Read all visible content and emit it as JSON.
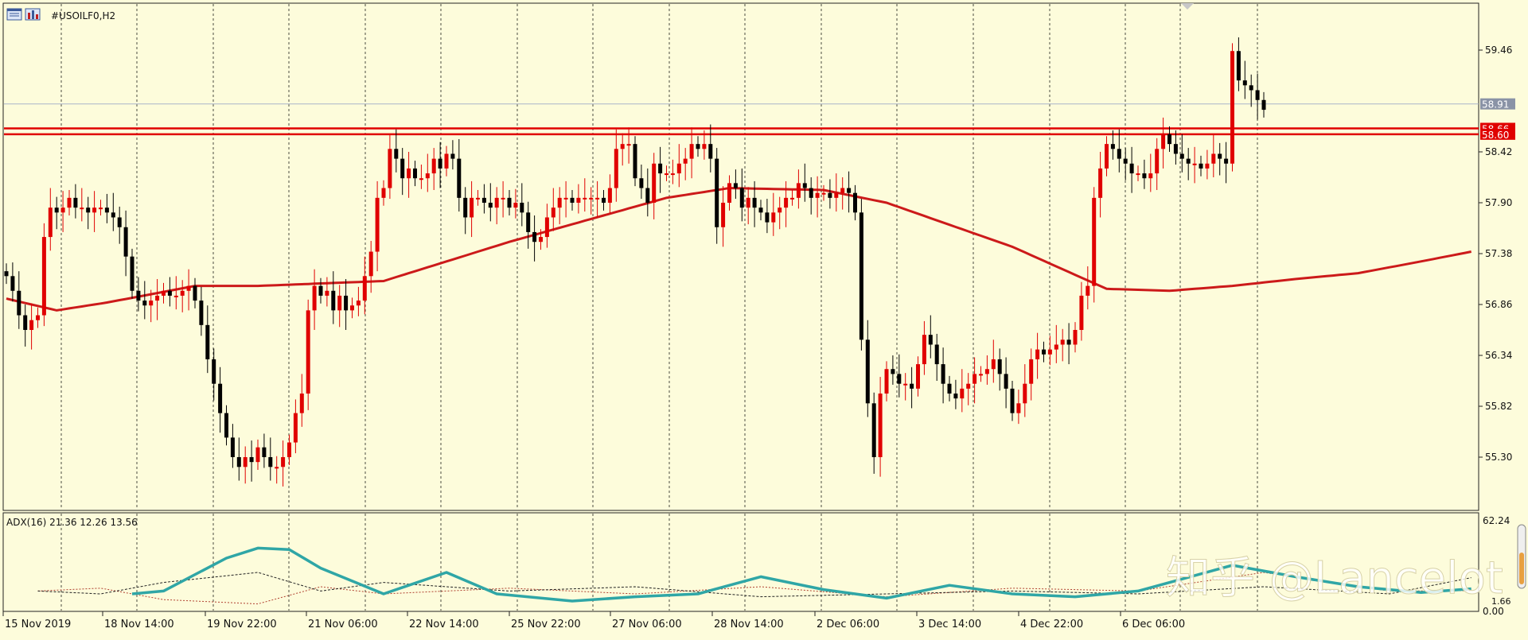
{
  "window": {
    "title": "#USOILF0,H2",
    "icons": [
      "chart-window-icon",
      "chart-bars-icon"
    ]
  },
  "main_panel": {
    "price_lines": [
      {
        "name": "current-price-line",
        "value": 58.91,
        "label": "58.91",
        "color": "#A9B3C9",
        "label_bg": "#8A93A6"
      },
      {
        "name": "resistance-line-upper",
        "value": 58.66,
        "label": "58.66",
        "color": "#E00000",
        "label_bg": "#E00000"
      },
      {
        "name": "resistance-line-lower",
        "value": 58.6,
        "label": "58.60",
        "color": "#E00000",
        "label_bg": "#E00000"
      }
    ]
  },
  "indicator_panel": {
    "label": "ADX(16) 21.36 12.26 13.56",
    "axis_labels": [
      "62.24",
      "1.66",
      "0.00"
    ]
  },
  "watermark": {
    "text": "知乎 @Lancelot"
  },
  "colors": {
    "background": "#FDFCDB",
    "bull_candle": "#E00000",
    "bear_candle": "#000000",
    "moving_average": "#CC1A1A",
    "adx_main": "#2FA6A6",
    "plus_di": "#222222",
    "minus_di": "#B04030",
    "grid": "#000000"
  },
  "chart_data": {
    "type": "candlestick",
    "symbol": "#USOILF0",
    "timeframe": "H2",
    "y_ticks": [
      55.3,
      55.82,
      56.34,
      56.86,
      57.38,
      57.9,
      58.42,
      59.46
    ],
    "ylim": [
      54.87,
      59.96
    ],
    "x_tick_labels": [
      "15 Nov 2019",
      "18 Nov 14:00",
      "19 Nov 22:00",
      "21 Nov 06:00",
      "22 Nov 14:00",
      "25 Nov 22:00",
      "27 Nov 06:00",
      "28 Nov 14:00",
      "2 Dec 06:00",
      "3 Dec 14:00",
      "4 Dec 22:00",
      "6 Dec 06:00"
    ],
    "candles_close": [
      57.15,
      57.0,
      56.75,
      56.6,
      56.7,
      56.75,
      57.55,
      57.85,
      57.8,
      57.85,
      57.95,
      57.85,
      57.85,
      57.8,
      57.85,
      57.85,
      57.8,
      57.75,
      57.65,
      57.35,
      57.0,
      56.9,
      56.85,
      56.9,
      56.95,
      57.0,
      56.95,
      56.95,
      57.0,
      57.05,
      56.9,
      56.65,
      56.3,
      56.05,
      55.75,
      55.5,
      55.3,
      55.2,
      55.3,
      55.25,
      55.4,
      55.3,
      55.2,
      55.2,
      55.3,
      55.45,
      55.75,
      55.95,
      56.8,
      57.05,
      56.95,
      57.0,
      56.8,
      56.95,
      56.8,
      56.85,
      56.9,
      57.15,
      57.4,
      57.95,
      58.05,
      58.45,
      58.35,
      58.15,
      58.25,
      58.15,
      58.15,
      58.2,
      58.35,
      58.25,
      58.4,
      58.35,
      57.95,
      57.75,
      57.95,
      57.95,
      57.9,
      57.85,
      57.95,
      57.95,
      57.85,
      57.9,
      57.8,
      57.6,
      57.5,
      57.55,
      57.75,
      57.85,
      57.95,
      57.95,
      57.9,
      57.95,
      57.95,
      57.95,
      57.95,
      57.9,
      58.05,
      58.45,
      58.5,
      58.5,
      58.15,
      58.05,
      57.9,
      58.3,
      58.2,
      58.2,
      58.2,
      58.3,
      58.35,
      58.5,
      58.45,
      58.5,
      58.35,
      57.65,
      57.9,
      58.1,
      58.05,
      57.85,
      57.95,
      57.85,
      57.8,
      57.7,
      57.8,
      57.85,
      57.95,
      57.95,
      58.1,
      58.05,
      57.95,
      58.0,
      58.0,
      57.95,
      58.0,
      58.05,
      58.0,
      57.8,
      56.5,
      55.85,
      55.3,
      55.95,
      56.2,
      56.15,
      56.05,
      56.05,
      56.0,
      56.25,
      56.55,
      56.45,
      56.25,
      56.05,
      55.95,
      55.9,
      56.0,
      56.05,
      56.15,
      56.15,
      56.2,
      56.3,
      56.15,
      56.0,
      55.75,
      55.85,
      56.05,
      56.3,
      56.4,
      56.35,
      56.4,
      56.45,
      56.5,
      56.45,
      56.6,
      56.95,
      57.05,
      57.95,
      58.25,
      58.5,
      58.45,
      58.35,
      58.3,
      58.2,
      58.2,
      58.15,
      58.2,
      58.45,
      58.6,
      58.5,
      58.4,
      58.35,
      58.3,
      58.3,
      58.25,
      58.3,
      58.4,
      58.35,
      58.3,
      59.45,
      59.15,
      59.1,
      59.05,
      58.95,
      58.85
    ],
    "moving_average": [
      [
        0,
        56.92
      ],
      [
        8,
        56.8
      ],
      [
        16,
        56.88
      ],
      [
        30,
        57.05
      ],
      [
        40,
        57.05
      ],
      [
        60,
        57.1
      ],
      [
        80,
        57.5
      ],
      [
        105,
        57.95
      ],
      [
        115,
        58.05
      ],
      [
        130,
        58.03
      ],
      [
        140,
        57.9
      ],
      [
        160,
        57.45
      ],
      [
        175,
        57.02
      ],
      [
        185,
        57.0
      ],
      [
        195,
        57.05
      ],
      [
        205,
        57.12
      ],
      [
        215,
        57.18
      ],
      [
        225,
        57.3
      ],
      [
        233,
        57.4
      ]
    ],
    "adx": [
      [
        20,
        10
      ],
      [
        25,
        12
      ],
      [
        35,
        35
      ],
      [
        40,
        42
      ],
      [
        45,
        41
      ],
      [
        50,
        28
      ],
      [
        60,
        10
      ],
      [
        70,
        25
      ],
      [
        78,
        10
      ],
      [
        90,
        5
      ],
      [
        100,
        8
      ],
      [
        110,
        10
      ],
      [
        120,
        22
      ],
      [
        130,
        13
      ],
      [
        140,
        7
      ],
      [
        150,
        16
      ],
      [
        160,
        10
      ],
      [
        170,
        8
      ],
      [
        180,
        12
      ],
      [
        195,
        30
      ],
      [
        205,
        22
      ],
      [
        215,
        15
      ],
      [
        225,
        11
      ],
      [
        233,
        13.56
      ]
    ],
    "plus_di": [
      [
        5,
        12
      ],
      [
        15,
        10
      ],
      [
        25,
        18
      ],
      [
        40,
        25
      ],
      [
        50,
        12
      ],
      [
        60,
        18
      ],
      [
        80,
        12
      ],
      [
        100,
        15
      ],
      [
        120,
        8
      ],
      [
        140,
        10
      ],
      [
        160,
        12
      ],
      [
        180,
        10
      ],
      [
        200,
        15
      ],
      [
        220,
        10
      ],
      [
        233,
        21.36
      ]
    ],
    "minus_di": [
      [
        5,
        12
      ],
      [
        15,
        14
      ],
      [
        25,
        6
      ],
      [
        40,
        3
      ],
      [
        50,
        15
      ],
      [
        60,
        10
      ],
      [
        80,
        14
      ],
      [
        100,
        10
      ],
      [
        120,
        15
      ],
      [
        140,
        8
      ],
      [
        160,
        14
      ],
      [
        180,
        12
      ],
      [
        200,
        25
      ],
      [
        220,
        12
      ],
      [
        233,
        12.26
      ]
    ]
  }
}
